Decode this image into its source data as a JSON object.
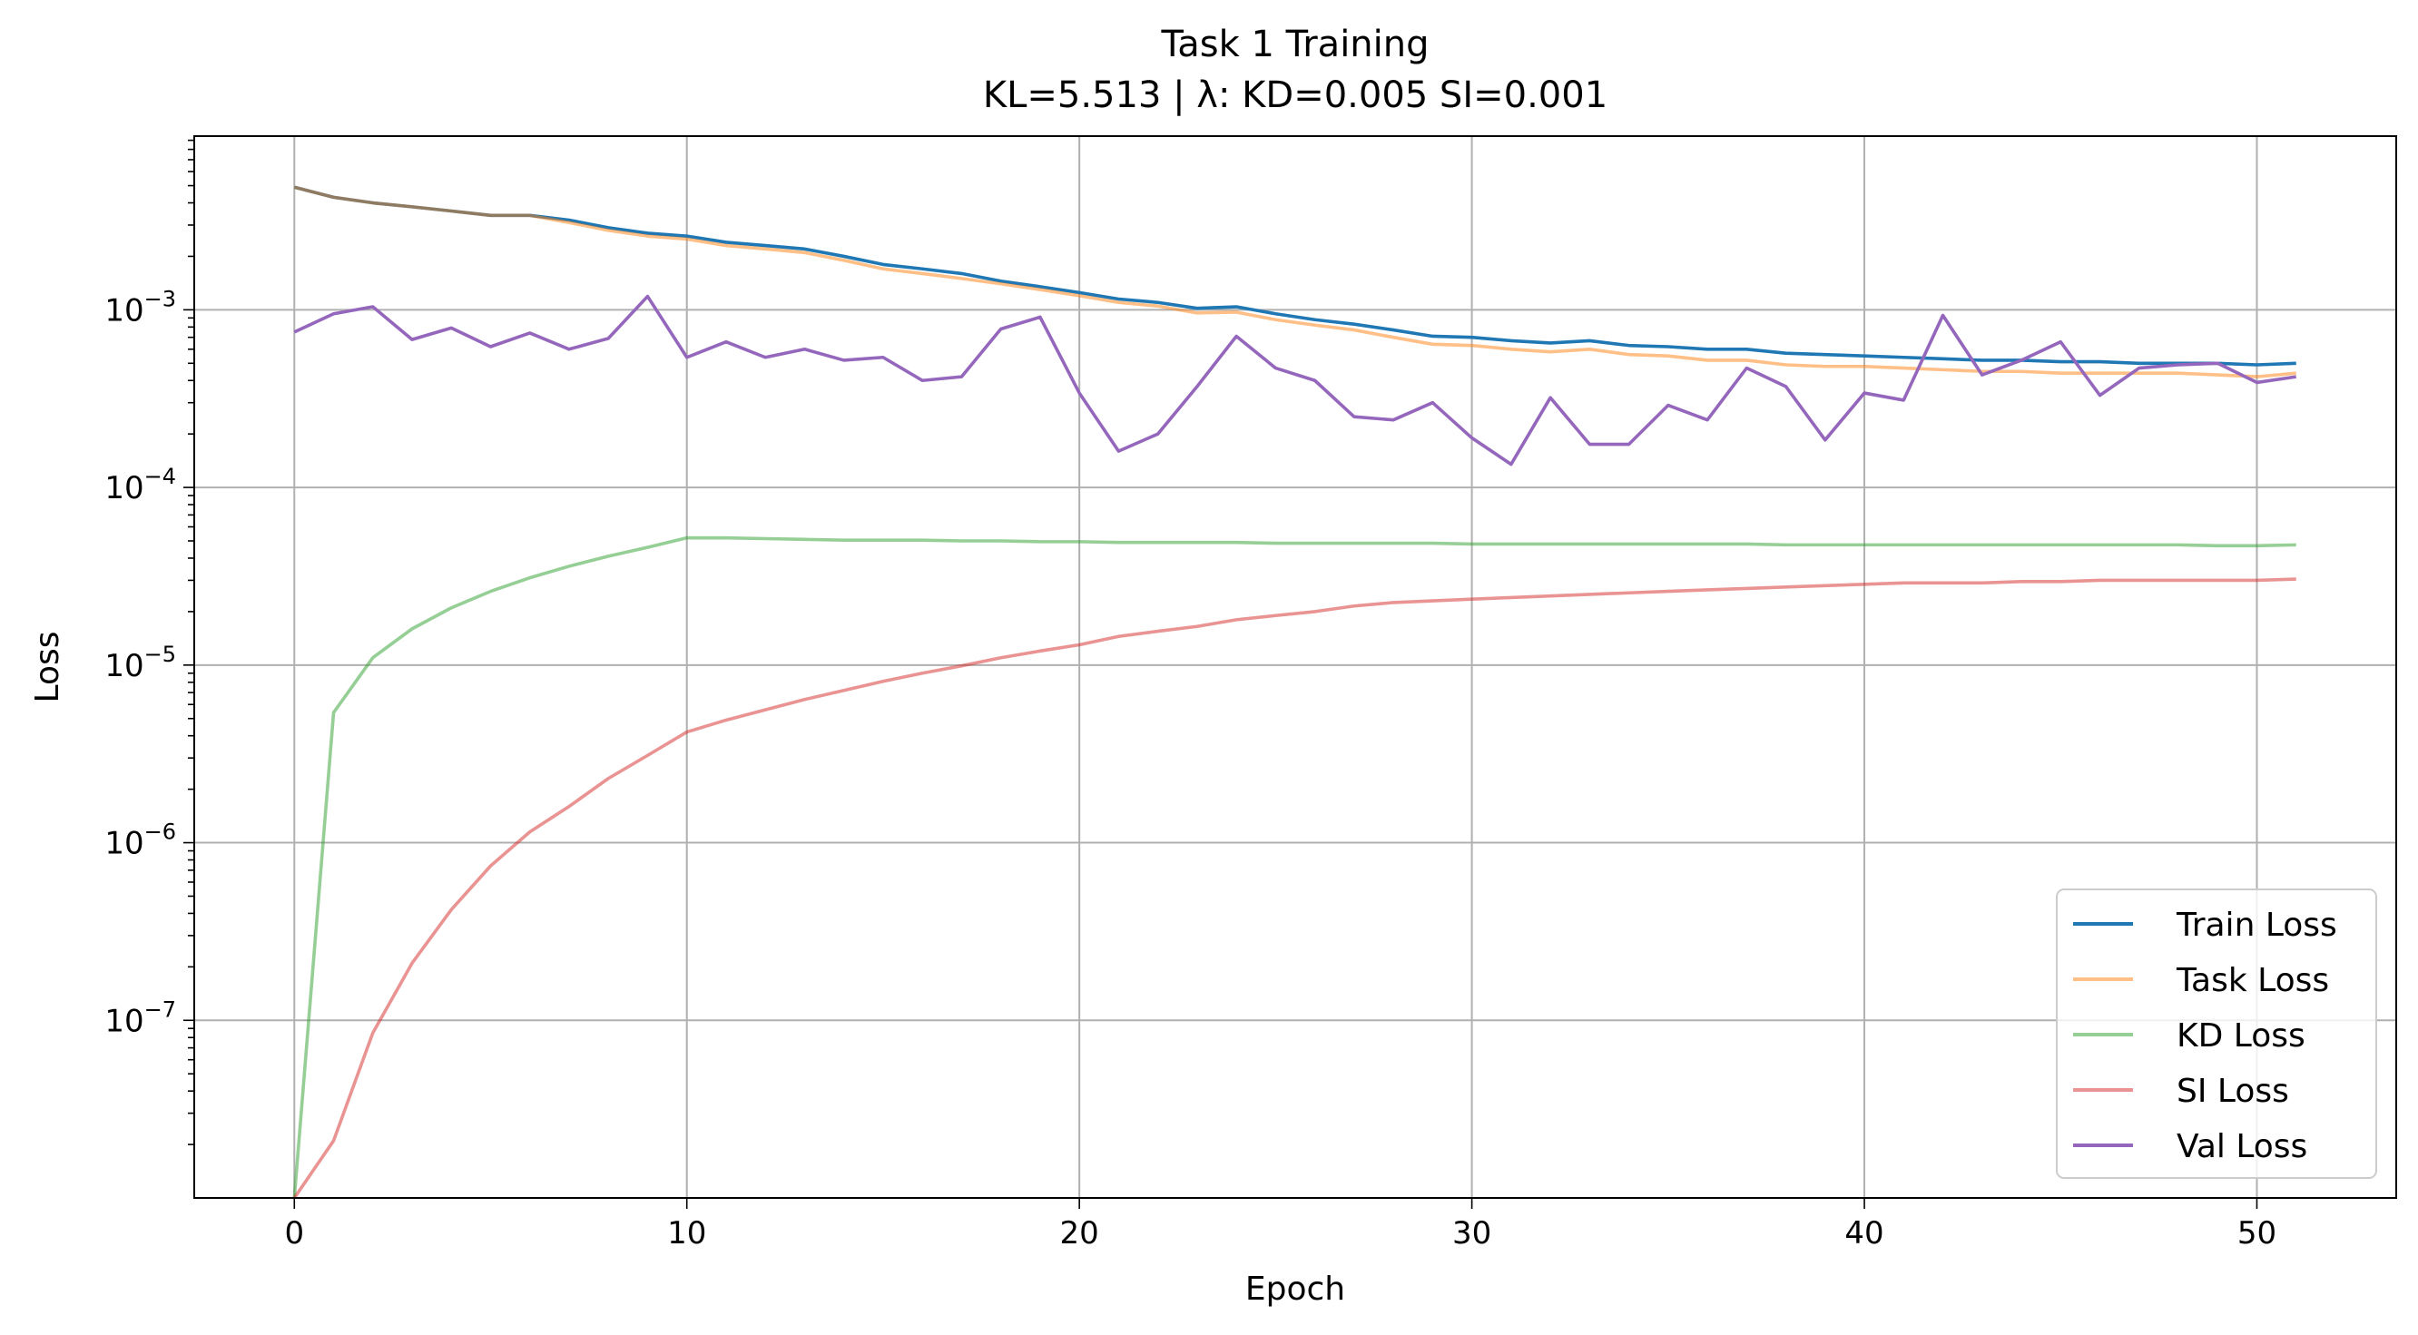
{
  "chart_data": {
    "type": "line",
    "title": "Task 1 Training",
    "subtitle": "KL=5.513 | λ: KD=0.005 SI=0.001",
    "xlabel": "Epoch",
    "ylabel": "Loss",
    "xlim": [
      -2.55,
      53.55
    ],
    "ylim": [
      1e-08,
      0.0095
    ],
    "yscale": "log",
    "grid": true,
    "legend_position": "lower-right",
    "xticks": [
      "0",
      "10",
      "20",
      "30",
      "40",
      "50"
    ],
    "yticks": [
      {
        "base": "10",
        "exp": "−7"
      },
      {
        "base": "10",
        "exp": "−6"
      },
      {
        "base": "10",
        "exp": "−5"
      },
      {
        "base": "10",
        "exp": "−4"
      },
      {
        "base": "10",
        "exp": "−3"
      }
    ],
    "x": [
      0,
      1,
      2,
      3,
      4,
      5,
      6,
      7,
      8,
      9,
      10,
      11,
      12,
      13,
      14,
      15,
      16,
      17,
      18,
      19,
      20,
      21,
      22,
      23,
      24,
      25,
      26,
      27,
      28,
      29,
      30,
      31,
      32,
      33,
      34,
      35,
      36,
      37,
      38,
      39,
      40,
      41,
      42,
      43,
      44,
      45,
      46,
      47,
      48,
      49,
      50,
      51
    ],
    "series": [
      {
        "name": "Train Loss",
        "color": "#1f77b4",
        "opacity": 1.0,
        "values": [
          0.0049,
          0.0043,
          0.004,
          0.0038,
          0.0036,
          0.0034,
          0.0034,
          0.0032,
          0.0029,
          0.0027,
          0.0026,
          0.0024,
          0.0023,
          0.0022,
          0.002,
          0.0018,
          0.0017,
          0.0016,
          0.00145,
          0.00135,
          0.00125,
          0.00115,
          0.0011,
          0.00102,
          0.00104,
          0.00095,
          0.00088,
          0.00083,
          0.00077,
          0.00071,
          0.0007,
          0.00067,
          0.00065,
          0.00067,
          0.00063,
          0.00062,
          0.0006,
          0.0006,
          0.00057,
          0.00056,
          0.00055,
          0.00054,
          0.00053,
          0.00052,
          0.00052,
          0.00051,
          0.00051,
          0.0005,
          0.0005,
          0.0005,
          0.00049,
          0.0005
        ]
      },
      {
        "name": "Task Loss",
        "color": "#ff7f0e",
        "opacity": 0.5,
        "values": [
          0.0049,
          0.0043,
          0.004,
          0.0038,
          0.0036,
          0.0034,
          0.0034,
          0.0031,
          0.0028,
          0.0026,
          0.0025,
          0.0023,
          0.0022,
          0.0021,
          0.0019,
          0.0017,
          0.0016,
          0.0015,
          0.0014,
          0.0013,
          0.0012,
          0.0011,
          0.00105,
          0.00096,
          0.00097,
          0.00088,
          0.00082,
          0.00077,
          0.0007,
          0.00064,
          0.00063,
          0.0006,
          0.00058,
          0.0006,
          0.00056,
          0.00055,
          0.00052,
          0.00052,
          0.00049,
          0.00048,
          0.00048,
          0.00047,
          0.00046,
          0.00045,
          0.00045,
          0.00044,
          0.00044,
          0.00044,
          0.00044,
          0.00043,
          0.00042,
          0.00044
        ]
      },
      {
        "name": "KD Loss",
        "color": "#2ca02c",
        "opacity": 0.5,
        "values": [
          1e-08,
          5.4e-06,
          1.1e-05,
          1.6e-05,
          2.1e-05,
          2.6e-05,
          3.1e-05,
          3.6e-05,
          4.1e-05,
          4.6e-05,
          5.2e-05,
          5.2e-05,
          5.15e-05,
          5.1e-05,
          5.05e-05,
          5.05e-05,
          5.05e-05,
          5e-05,
          5e-05,
          4.95e-05,
          4.95e-05,
          4.9e-05,
          4.9e-05,
          4.9e-05,
          4.9e-05,
          4.85e-05,
          4.85e-05,
          4.85e-05,
          4.85e-05,
          4.85e-05,
          4.8e-05,
          4.8e-05,
          4.8e-05,
          4.8e-05,
          4.8e-05,
          4.8e-05,
          4.8e-05,
          4.8e-05,
          4.75e-05,
          4.75e-05,
          4.75e-05,
          4.75e-05,
          4.75e-05,
          4.75e-05,
          4.75e-05,
          4.75e-05,
          4.75e-05,
          4.75e-05,
          4.75e-05,
          4.7e-05,
          4.7e-05,
          4.75e-05
        ]
      },
      {
        "name": "SI Loss",
        "color": "#d62728",
        "opacity": 0.5,
        "values": [
          1e-08,
          2.1e-08,
          8.5e-08,
          2.1e-07,
          4.2e-07,
          7.4e-07,
          1.15e-06,
          1.6e-06,
          2.3e-06,
          3.1e-06,
          4.2e-06,
          4.9e-06,
          5.6e-06,
          6.4e-06,
          7.2e-06,
          8.1e-06,
          9e-06,
          9.9e-06,
          1.1e-05,
          1.2e-05,
          1.3e-05,
          1.45e-05,
          1.55e-05,
          1.65e-05,
          1.8e-05,
          1.9e-05,
          2e-05,
          2.15e-05,
          2.25e-05,
          2.3e-05,
          2.35e-05,
          2.4e-05,
          2.45e-05,
          2.5e-05,
          2.55e-05,
          2.6e-05,
          2.65e-05,
          2.7e-05,
          2.75e-05,
          2.8e-05,
          2.85e-05,
          2.9e-05,
          2.9e-05,
          2.9e-05,
          2.95e-05,
          2.95e-05,
          3e-05,
          3e-05,
          3e-05,
          3e-05,
          3e-05,
          3.05e-05
        ]
      },
      {
        "name": "Val Loss",
        "color": "#9467bd",
        "opacity": 1.0,
        "values": [
          0.00075,
          0.00095,
          0.00104,
          0.00068,
          0.00079,
          0.00062,
          0.00074,
          0.0006,
          0.00069,
          0.00119,
          0.00054,
          0.00066,
          0.00054,
          0.0006,
          0.00052,
          0.00054,
          0.0004,
          0.00042,
          0.00078,
          0.00091,
          0.00034,
          0.00016,
          0.0002,
          0.00037,
          0.00071,
          0.00047,
          0.0004,
          0.00025,
          0.00024,
          0.0003,
          0.00019,
          0.000135,
          0.00032,
          0.000175,
          0.000175,
          0.00029,
          0.00024,
          0.00047,
          0.00037,
          0.000185,
          0.00034,
          0.00031,
          0.00093,
          0.00043,
          0.00052,
          0.00066,
          0.00033,
          0.00047,
          0.00049,
          0.0005,
          0.00039,
          0.00042
        ]
      }
    ]
  }
}
